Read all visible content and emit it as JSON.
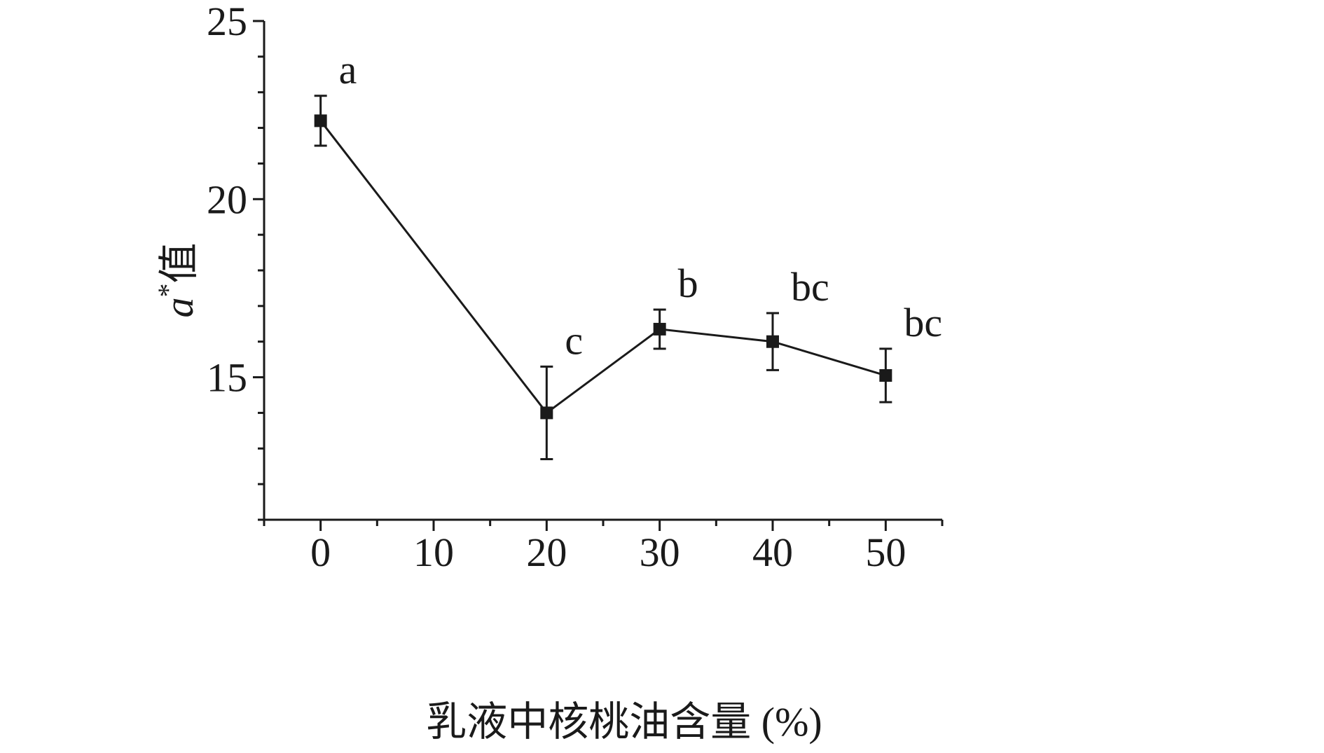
{
  "chart_data": {
    "type": "line",
    "xlabel": "乳液中核桃油含量 (%)",
    "ylabel_main": "a",
    "ylabel_sup": "*",
    "ylabel_suffix": "值",
    "xlim": [
      -5,
      55
    ],
    "ylim": [
      11,
      25
    ],
    "x_ticks_major": [
      0,
      10,
      20,
      30,
      40,
      50
    ],
    "x_ticks_minor": [
      -5,
      5,
      15,
      25,
      35,
      45,
      55
    ],
    "y_ticks_major": [
      15,
      20,
      25
    ],
    "y_ticks_minor": [
      11,
      12,
      13,
      14,
      16,
      17,
      18,
      19,
      21,
      22,
      23,
      24
    ],
    "x": [
      0,
      20,
      30,
      40,
      50
    ],
    "y": [
      22.2,
      14.0,
      16.35,
      16.0,
      15.05
    ],
    "error": [
      0.7,
      1.3,
      0.55,
      0.8,
      0.75
    ],
    "annotations": [
      "a",
      "c",
      "b",
      "bc",
      "bc"
    ],
    "grid": false,
    "marker": "square",
    "color": "#1a1a1a"
  }
}
